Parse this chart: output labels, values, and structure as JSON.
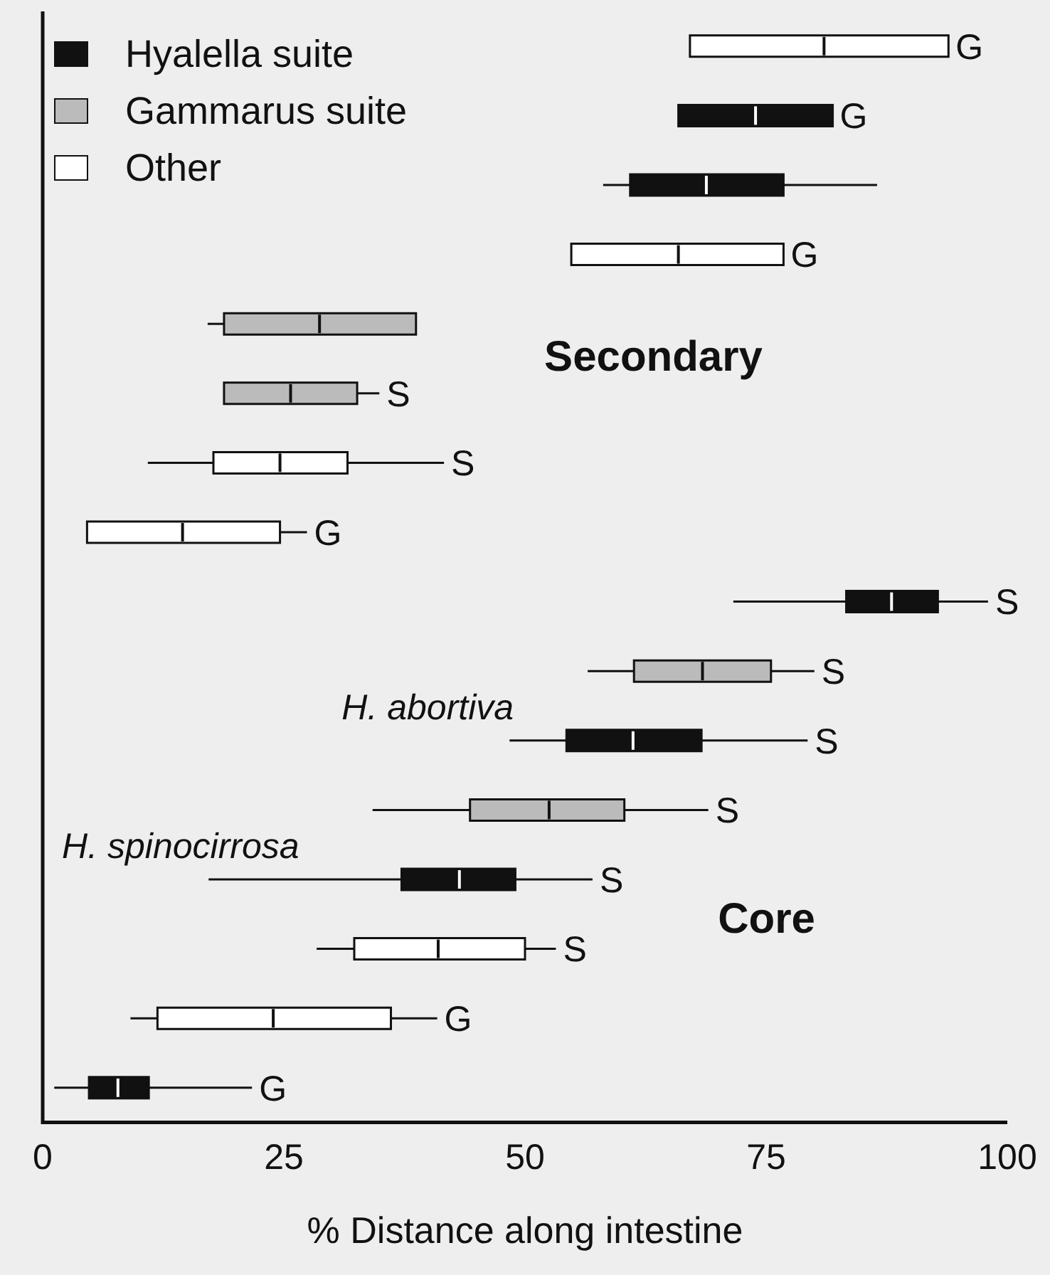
{
  "chart_data": {
    "type": "box",
    "orientation": "horizontal",
    "categories": [
      null,
      null,
      null,
      null,
      null,
      null,
      null,
      null,
      null,
      null,
      null,
      null,
      null,
      null,
      null,
      null
    ],
    "xlabel": "% Distance along intestine",
    "xlim": [
      0,
      100
    ],
    "xticks": [
      0,
      25,
      50,
      75,
      100
    ],
    "grid": false,
    "legend": "top left",
    "tick_labels": "x",
    "annotations": [
      "Secondary",
      "H. abortiva",
      "H. spinocirrosa",
      "Core"
    ],
    "series": [
      {
        "name": "Hyalella suite",
        "color": "#111111",
        "boxes": [
          null,
          {
            "low": 65.9,
            "q1": 65.9,
            "median": 73.9,
            "q3": 81.9,
            "high": 81.9
          },
          {
            "low": 58.1,
            "q1": 60.9,
            "median": 68.8,
            "q3": 76.8,
            "high": 86.5
          },
          null,
          null,
          null,
          null,
          null,
          {
            "low": 71.6,
            "q1": 83.3,
            "median": 88.0,
            "q3": 92.8,
            "high": 98.0
          },
          null,
          {
            "low": 48.4,
            "q1": 54.3,
            "median": 61.2,
            "q3": 68.3,
            "high": 79.3
          },
          null,
          {
            "low": 17.2,
            "q1": 37.2,
            "median": 43.2,
            "q3": 49.0,
            "high": 57.0
          },
          null,
          null,
          {
            "low": 1.2,
            "q1": 4.8,
            "median": 7.8,
            "q3": 11.0,
            "high": 21.7
          }
        ],
        "value_labels": [
          null,
          "G",
          null,
          null,
          null,
          null,
          null,
          null,
          "S",
          null,
          "S",
          null,
          "S",
          null,
          null,
          "G"
        ]
      },
      {
        "name": "Gammarus suite",
        "color": "#bbbbbb",
        "boxes": [
          null,
          null,
          null,
          null,
          {
            "low": 17.1,
            "q1": 18.8,
            "median": 28.7,
            "q3": 38.7,
            "high": 38.7
          },
          {
            "low": 18.8,
            "q1": 18.8,
            "median": 25.7,
            "q3": 32.6,
            "high": 34.9
          },
          null,
          null,
          null,
          {
            "low": 56.5,
            "q1": 61.3,
            "median": 68.4,
            "q3": 75.5,
            "high": 80.0
          },
          null,
          {
            "low": 34.2,
            "q1": 44.3,
            "median": 52.5,
            "q3": 60.3,
            "high": 69.0
          },
          null,
          null,
          null,
          null
        ],
        "value_labels": [
          null,
          null,
          null,
          null,
          null,
          "S",
          null,
          null,
          null,
          "S",
          null,
          "S",
          null,
          null,
          null,
          null
        ]
      },
      {
        "name": "Other",
        "color": "#ffffff",
        "boxes": [
          {
            "low": 67.1,
            "q1": 67.1,
            "median": 81.0,
            "q3": 93.9,
            "high": 93.9
          },
          null,
          null,
          {
            "low": 54.8,
            "q1": 54.8,
            "median": 65.9,
            "q3": 76.8,
            "high": 76.8
          },
          null,
          null,
          {
            "low": 10.9,
            "q1": 17.7,
            "median": 24.6,
            "q3": 31.6,
            "high": 41.6
          },
          {
            "low": 4.6,
            "q1": 4.6,
            "median": 14.5,
            "q3": 24.6,
            "high": 27.4
          },
          null,
          null,
          null,
          null,
          null,
          {
            "low": 28.4,
            "q1": 32.3,
            "median": 41.0,
            "q3": 50.0,
            "high": 53.2
          },
          {
            "low": 9.1,
            "q1": 11.9,
            "median": 23.9,
            "q3": 36.1,
            "high": 40.9
          },
          null
        ],
        "value_labels": [
          "G",
          null,
          null,
          "G",
          null,
          null,
          "S",
          "G",
          null,
          null,
          null,
          null,
          null,
          "S",
          "G",
          null
        ]
      }
    ]
  }
}
